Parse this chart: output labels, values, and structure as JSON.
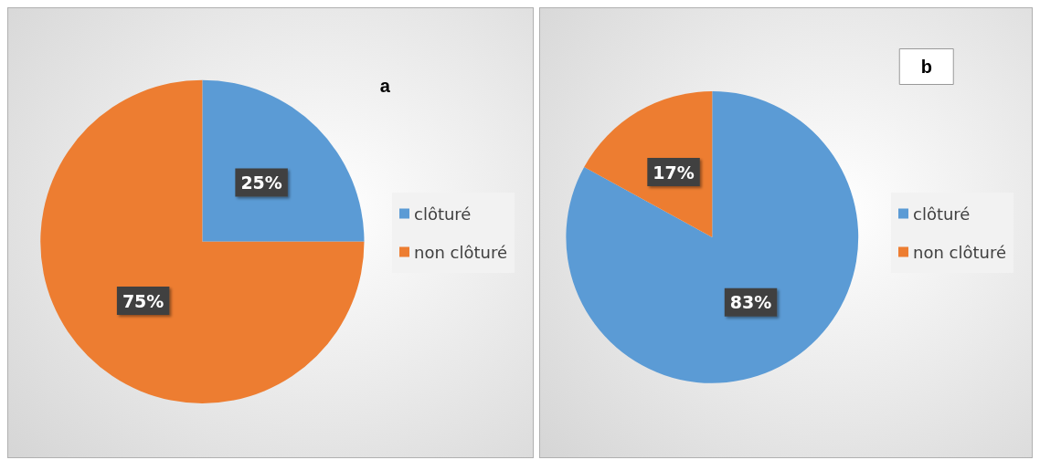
{
  "chart_data": [
    {
      "type": "pie",
      "title": "a",
      "categories": [
        "clôturé",
        "non clôturé"
      ],
      "values": [
        25,
        75
      ],
      "value_labels": [
        "25%",
        "75%"
      ],
      "colors": [
        "#5b9bd5",
        "#ed7d31"
      ],
      "legend": "right"
    },
    {
      "type": "pie",
      "title": "b",
      "categories": [
        "clôturé",
        "non clôturé"
      ],
      "values": [
        83,
        17
      ],
      "value_labels": [
        "83%",
        "17%"
      ],
      "colors": [
        "#5b9bd5",
        "#ed7d31"
      ],
      "legend": "right"
    }
  ]
}
